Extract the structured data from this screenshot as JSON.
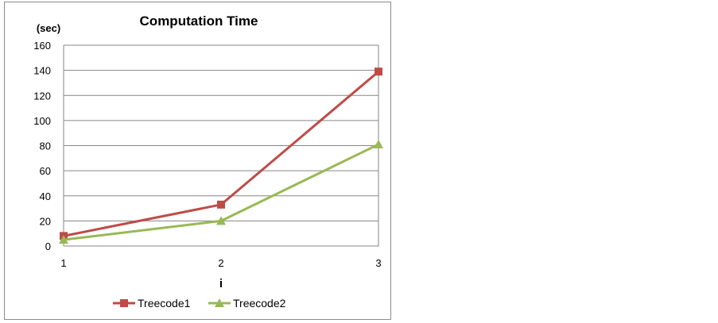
{
  "chart_data": {
    "type": "line",
    "title": "Computation Time",
    "ylabel": "(sec)",
    "xlabel": "i",
    "x": [
      1,
      2,
      3
    ],
    "xticks": [
      "1",
      "2",
      "3"
    ],
    "ylim": [
      0,
      160
    ],
    "yticks": [
      0,
      20,
      40,
      60,
      80,
      100,
      120,
      140,
      160
    ],
    "grid": true,
    "legend_position": "bottom",
    "series": [
      {
        "name": "Treecode1",
        "values": [
          8,
          33,
          139
        ],
        "color": "#be4b48",
        "marker": "square"
      },
      {
        "name": "Treecode2",
        "values": [
          5,
          20,
          81
        ],
        "color": "#98b954",
        "marker": "triangle"
      }
    ]
  }
}
